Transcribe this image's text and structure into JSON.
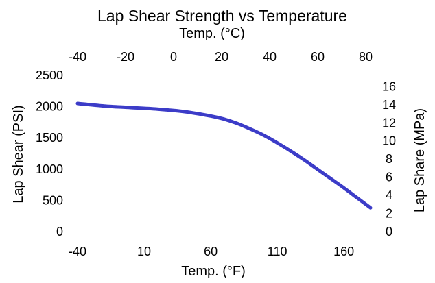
{
  "chart_data": {
    "type": "line",
    "title": "Lap Shear Strength vs Temperature",
    "xlabel": "Temp. (°F)",
    "x2label": "Temp. (°C)",
    "ylabel": "Lap Shear (PSI)",
    "y2label": "Lap Share (MPa)",
    "xlim": [
      -40,
      180
    ],
    "ylim": [
      0,
      2500
    ],
    "x2lim": [
      -40,
      82
    ],
    "y2lim": [
      0,
      17.24
    ],
    "xticks": [
      -40,
      10,
      60,
      110,
      160
    ],
    "yticks": [
      0,
      500,
      1000,
      1500,
      2000,
      2500
    ],
    "x2ticks": [
      -40,
      -20,
      0,
      20,
      40,
      60,
      80
    ],
    "y2ticks": [
      0,
      2,
      4,
      6,
      8,
      10,
      12,
      14,
      16
    ],
    "series": [
      {
        "color": "#3c3cc8",
        "x": [
          -40,
          -20,
          0,
          20,
          40,
          60,
          70,
          80,
          90,
          100,
          110,
          120,
          130,
          140,
          150,
          160,
          170,
          180
        ],
        "y": [
          2050,
          2010,
          1985,
          1960,
          1920,
          1850,
          1800,
          1730,
          1640,
          1540,
          1420,
          1290,
          1150,
          1000,
          850,
          700,
          540,
          380
        ]
      }
    ],
    "grid": false,
    "legend": "none"
  }
}
